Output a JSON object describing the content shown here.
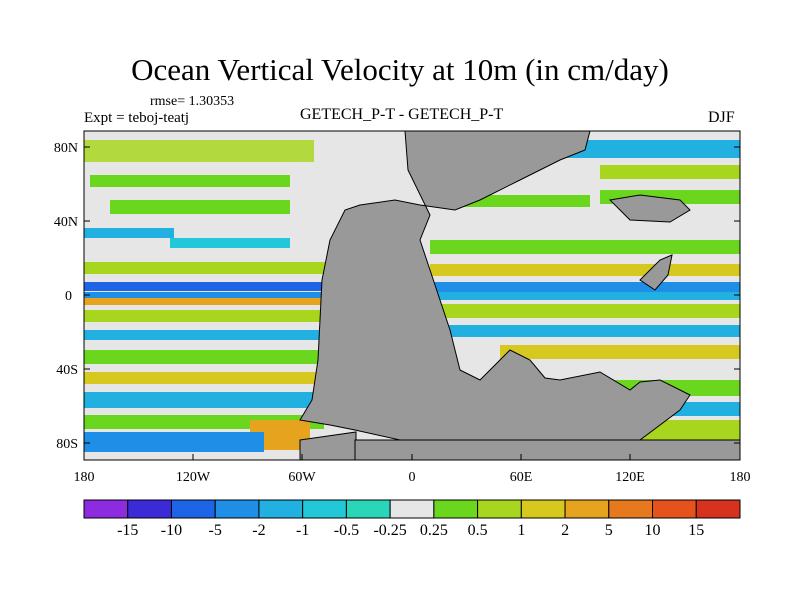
{
  "title": "Ocean Vertical Velocity at 10m (in cm/day)",
  "rmse_text": "rmse= 1.30353",
  "expt_text": "Expt = teboj-teatj",
  "center_label": "GETECH_P-T - GETECH_P-T",
  "season": "DJF",
  "lat_labels": [
    "80N",
    "40N",
    "0",
    "40S",
    "80S"
  ],
  "lon_labels": [
    "180",
    "120W",
    "60W",
    "0",
    "60E",
    "120E",
    "180"
  ],
  "colorbar": {
    "labels": [
      "-15",
      "-10",
      "-5",
      "-2",
      "-1",
      "-0.5",
      "-0.25",
      "0.25",
      "0.5",
      "1",
      "2",
      "5",
      "10",
      "15"
    ],
    "colors": [
      "#8c2be0",
      "#3b2bd6",
      "#1e64e6",
      "#1e8ee6",
      "#21b0e0",
      "#22c8d8",
      "#2ad6b8",
      "#e6e6e6",
      "#6ad61e",
      "#a8d61e",
      "#d6c81e",
      "#e6a41e",
      "#e6781e",
      "#e6521e",
      "#d6321e"
    ]
  },
  "colors": {
    "land": "#999999",
    "ocean_neutral": "#e6e6e6"
  }
}
